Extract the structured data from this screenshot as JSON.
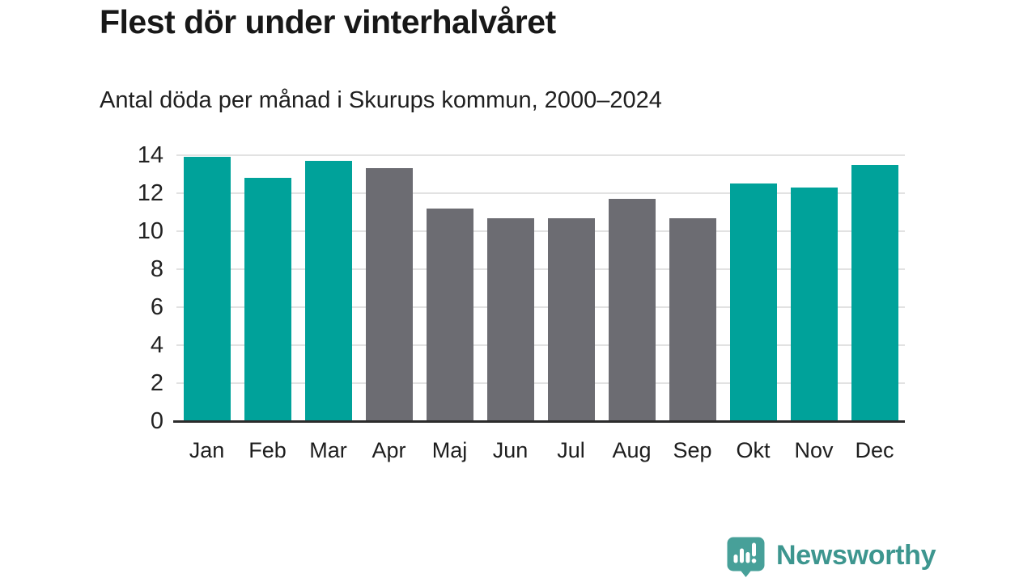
{
  "header": {
    "title": "Flest dör under vinterhalvåret",
    "subtitle": "Antal döda per månad i Skurups kommun, 2000–2024"
  },
  "chart_data": {
    "type": "bar",
    "title": "Flest dör under vinterhalvåret",
    "subtitle": "Antal döda per månad i Skurups kommun, 2000–2024",
    "categories": [
      "Jan",
      "Feb",
      "Mar",
      "Apr",
      "Maj",
      "Jun",
      "Jul",
      "Aug",
      "Sep",
      "Okt",
      "Nov",
      "Dec"
    ],
    "values": [
      13.9,
      12.8,
      13.7,
      13.3,
      11.2,
      10.7,
      10.7,
      11.7,
      10.7,
      12.5,
      12.3,
      13.5
    ],
    "bar_color_keys": [
      "highlight",
      "highlight",
      "highlight",
      "muted",
      "muted",
      "muted",
      "muted",
      "muted",
      "muted",
      "highlight",
      "highlight",
      "highlight"
    ],
    "colors": {
      "highlight": "#00a29a",
      "muted": "#6c6c72",
      "gridline": "#e2e2e2",
      "axis": "#2b2b2b",
      "tick_text": "#222222"
    },
    "xlabel": "",
    "ylabel": "",
    "ylim": [
      0,
      14
    ],
    "yticks": [
      0,
      2,
      4,
      6,
      8,
      10,
      12,
      14
    ],
    "grid": true,
    "legend_position": "none"
  },
  "branding": {
    "name": "Newsworthy",
    "logo_icon": "bar-chart-speech-bubble",
    "icon_color": "#47a099",
    "text_color": "#3d968f"
  }
}
